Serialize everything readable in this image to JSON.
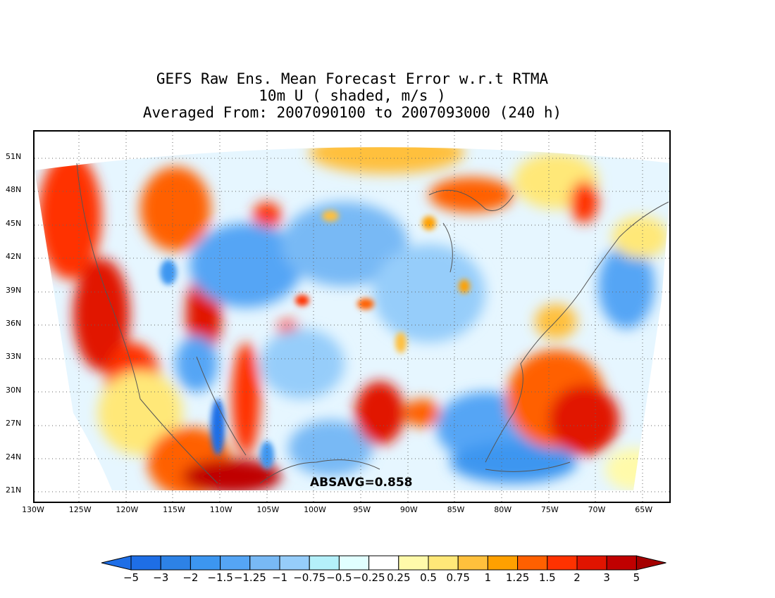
{
  "title": {
    "line1": "GEFS Raw Ens. Mean Forecast Error w.r.t RTMA",
    "line2": "10m U ( shaded, m/s )",
    "line3": "Averaged From: 2007090100 to 2007093000 (240 h)"
  },
  "map": {
    "lat_labels": [
      "51N",
      "48N",
      "45N",
      "42N",
      "39N",
      "36N",
      "33N",
      "30N",
      "27N",
      "24N",
      "21N"
    ],
    "lat_values": [
      51,
      48,
      45,
      42,
      39,
      36,
      33,
      30,
      27,
      24,
      21
    ],
    "lon_labels": [
      "130W",
      "125W",
      "120W",
      "115W",
      "110W",
      "105W",
      "100W",
      "95W",
      "90W",
      "85W",
      "80W",
      "75W",
      "70W",
      "65W"
    ],
    "lon_values": [
      -130,
      -125,
      -120,
      -115,
      -110,
      -105,
      -100,
      -95,
      -90,
      -85,
      -80,
      -75,
      -70,
      -65
    ],
    "statistic": "ABSAVG=0.858",
    "background_color": "#ffffff",
    "gridline": "dotted"
  },
  "colorbar": {
    "labels": [
      "−5",
      "−3",
      "−2",
      "−1.5",
      "−1.25",
      "−1",
      "−0.75",
      "−0.5",
      "−0.25",
      "0.25",
      "0.5",
      "0.75",
      "1",
      "1.25",
      "1.5",
      "2",
      "3",
      "5"
    ],
    "colors": [
      "#1e6ee6",
      "#2d82e6",
      "#3c96f0",
      "#55a5f5",
      "#78b9f5",
      "#96cdfa",
      "#b4f0fa",
      "#e1ffff",
      "#ffffff",
      "#fffaaa",
      "#ffe878",
      "#ffc03c",
      "#ffa000",
      "#ff6000",
      "#ff3200",
      "#e11400",
      "#c00000",
      "#a50000"
    ]
  }
}
